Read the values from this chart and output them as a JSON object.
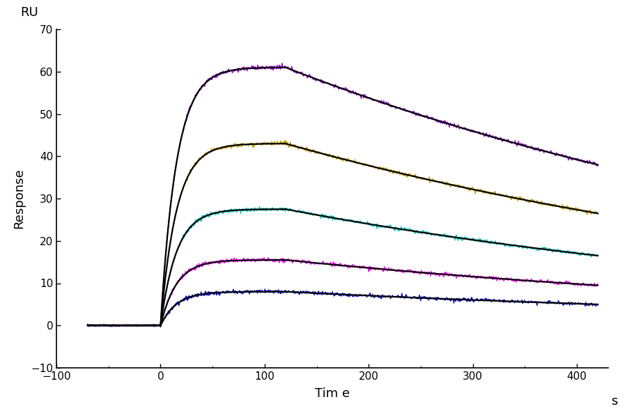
{
  "title": "",
  "xlabel": "Tim e",
  "ylabel": "Response",
  "ru_label": "RU",
  "s_label": "s",
  "xlim": [
    -100,
    430
  ],
  "ylim": [
    -10,
    70
  ],
  "xticks": [
    -100,
    0,
    100,
    200,
    300,
    400
  ],
  "yticks": [
    -10,
    0,
    10,
    20,
    30,
    40,
    50,
    60,
    70
  ],
  "background_color": "#ffffff",
  "curves": [
    {
      "peak": 61,
      "end": 38,
      "color_exp": "#9B00D3",
      "color_fit": "#000000",
      "k_assoc": 0.065,
      "k_dissoc": 0.002
    },
    {
      "peak": 43,
      "end": 26.5,
      "color_exp": "#C8A000",
      "color_fit": "#000000",
      "k_assoc": 0.065,
      "k_dissoc": 0.002
    },
    {
      "peak": 27.5,
      "end": 16.5,
      "color_exp": "#00C8C8",
      "color_fit": "#000000",
      "k_assoc": 0.065,
      "k_dissoc": 0.002
    },
    {
      "peak": 15.5,
      "end": 9.5,
      "color_exp": "#FF00FF",
      "color_fit": "#000000",
      "k_assoc": 0.065,
      "k_dissoc": 0.002
    },
    {
      "peak": 8,
      "end": 5.0,
      "color_exp": "#0000CD",
      "color_fit": "#000000",
      "k_assoc": 0.065,
      "k_dissoc": 0.002
    }
  ],
  "t_start": -70,
  "t_assoc_start": 0,
  "t_assoc_end": 120,
  "t_dissoc_end": 420,
  "baseline": 0.0
}
